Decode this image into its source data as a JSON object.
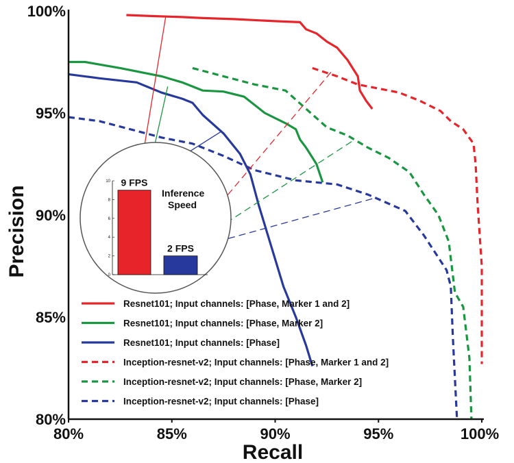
{
  "chart_data": {
    "type": "line",
    "xlabel": "Recall",
    "ylabel": "Precision",
    "xlim": [
      80,
      100
    ],
    "ylim": [
      80,
      100
    ],
    "x_ticks": [
      "80%",
      "85%",
      "90%",
      "95%",
      "100%"
    ],
    "y_ticks": [
      "80%",
      "85%",
      "90%",
      "95%",
      "100%"
    ],
    "legend_position": "bottom-right",
    "series": [
      {
        "name": "Resnet101; Input channels: [Phase, Marker 1 and 2]",
        "color": "#e8242b",
        "dash": "solid",
        "points": [
          [
            82.8,
            99.8
          ],
          [
            84.0,
            99.75
          ],
          [
            85.5,
            99.7
          ],
          [
            86.5,
            99.65
          ],
          [
            88.0,
            99.6
          ],
          [
            90.0,
            99.5
          ],
          [
            91.2,
            99.45
          ],
          [
            91.5,
            99.1
          ],
          [
            92.0,
            98.9
          ],
          [
            92.5,
            98.5
          ],
          [
            93.0,
            98.2
          ],
          [
            93.5,
            97.6
          ],
          [
            94.0,
            96.8
          ],
          [
            94.1,
            96.1
          ],
          [
            94.4,
            95.6
          ],
          [
            94.7,
            95.2
          ]
        ],
        "inset_arrow": {
          "x": 84.7,
          "y": 99.7
        }
      },
      {
        "name": "Resnet101; Input channels: [Phase, Marker 2]",
        "color": "#1a9641",
        "dash": "solid",
        "points": [
          [
            80.0,
            97.5
          ],
          [
            80.8,
            97.5
          ],
          [
            82.5,
            97.2
          ],
          [
            84.5,
            96.8
          ],
          [
            85.5,
            96.5
          ],
          [
            86.5,
            96.1
          ],
          [
            87.5,
            96.05
          ],
          [
            88.5,
            95.8
          ],
          [
            89.5,
            95.0
          ],
          [
            90.5,
            94.5
          ],
          [
            91.0,
            94.2
          ],
          [
            91.2,
            93.7
          ],
          [
            91.5,
            93.3
          ],
          [
            92.0,
            92.5
          ],
          [
            92.3,
            91.6
          ]
        ],
        "inset_arrow": {
          "x": 84.8,
          "y": 96.3
        }
      },
      {
        "name": "Resnet101; Input channels: [Phase]",
        "color": "#27399c",
        "dash": "solid",
        "points": [
          [
            80.0,
            96.9
          ],
          [
            81.5,
            96.7
          ],
          [
            83.3,
            96.5
          ],
          [
            84.5,
            96.0
          ],
          [
            85.5,
            95.7
          ],
          [
            86.0,
            95.5
          ],
          [
            86.5,
            94.9
          ],
          [
            87.5,
            94.0
          ],
          [
            88.3,
            93.0
          ],
          [
            88.8,
            92.0
          ],
          [
            89.2,
            90.5
          ],
          [
            89.8,
            88.5
          ],
          [
            90.4,
            86.5
          ],
          [
            91.0,
            85.0
          ],
          [
            91.5,
            83.6
          ],
          [
            91.8,
            82.6
          ]
        ],
        "inset_arrow": {
          "x": 87.4,
          "y": 94.1
        }
      },
      {
        "name": "Inception-resnet-v2; Input channels: [Phase, Marker 1 and 2]",
        "color": "#e8242b",
        "dash": "dashed",
        "points": [
          [
            91.8,
            97.2
          ],
          [
            93.0,
            96.8
          ],
          [
            94.0,
            96.4
          ],
          [
            95.0,
            96.2
          ],
          [
            96.0,
            96.0
          ],
          [
            97.0,
            95.6
          ],
          [
            98.0,
            95.1
          ],
          [
            98.5,
            94.6
          ],
          [
            99.1,
            94.2
          ],
          [
            99.6,
            93.5
          ],
          [
            99.7,
            92.5
          ],
          [
            99.8,
            90.5
          ],
          [
            99.9,
            89.0
          ],
          [
            100.0,
            87.5
          ],
          [
            100.0,
            85.0
          ],
          [
            100.0,
            82.7
          ]
        ],
        "inset_arrow": {
          "x": 92.7,
          "y": 97.0
        }
      },
      {
        "name": "Inception-resnet-v2; Input channels: [Phase, Marker 2]",
        "color": "#1a9641",
        "dash": "dashed",
        "points": [
          [
            86.0,
            97.2
          ],
          [
            87.5,
            96.8
          ],
          [
            89.0,
            96.4
          ],
          [
            90.5,
            96.1
          ],
          [
            91.5,
            95.2
          ],
          [
            92.5,
            94.3
          ],
          [
            93.5,
            93.9
          ],
          [
            94.5,
            93.3
          ],
          [
            95.5,
            92.8
          ],
          [
            96.5,
            92.1
          ],
          [
            97.2,
            91.0
          ],
          [
            97.9,
            90.0
          ],
          [
            98.4,
            88.7
          ],
          [
            98.7,
            86.2
          ],
          [
            99.1,
            85.5
          ],
          [
            99.4,
            83.0
          ],
          [
            99.5,
            80.0
          ]
        ],
        "inset_arrow": {
          "x": 93.7,
          "y": 93.6
        }
      },
      {
        "name": "Inception-resnet-v2; Input channels: [Phase]",
        "color": "#27399c",
        "dash": "dashed",
        "points": [
          [
            80.0,
            94.8
          ],
          [
            81.5,
            94.6
          ],
          [
            83.0,
            94.2
          ],
          [
            84.5,
            93.8
          ],
          [
            86.0,
            93.5
          ],
          [
            87.5,
            92.9
          ],
          [
            89.0,
            92.2
          ],
          [
            91.0,
            91.7
          ],
          [
            93.0,
            91.5
          ],
          [
            94.5,
            91.0
          ],
          [
            96.3,
            90.2
          ],
          [
            97.2,
            89.0
          ],
          [
            98.3,
            87.3
          ],
          [
            98.5,
            86.5
          ],
          [
            98.6,
            84.0
          ],
          [
            98.7,
            82.0
          ],
          [
            98.8,
            80.0
          ]
        ],
        "inset_arrow": {
          "x": 94.7,
          "y": 90.8
        }
      }
    ],
    "inset": {
      "title": "Inference Speed",
      "y_ticks": [
        "0",
        "2",
        "4",
        "6",
        "8",
        "10"
      ],
      "ylim": [
        0,
        10
      ],
      "bars": [
        {
          "label": "9 FPS",
          "value": 9,
          "color": "#e8242b"
        },
        {
          "label": "2 FPS",
          "value": 2,
          "color": "#27399c"
        }
      ]
    }
  }
}
